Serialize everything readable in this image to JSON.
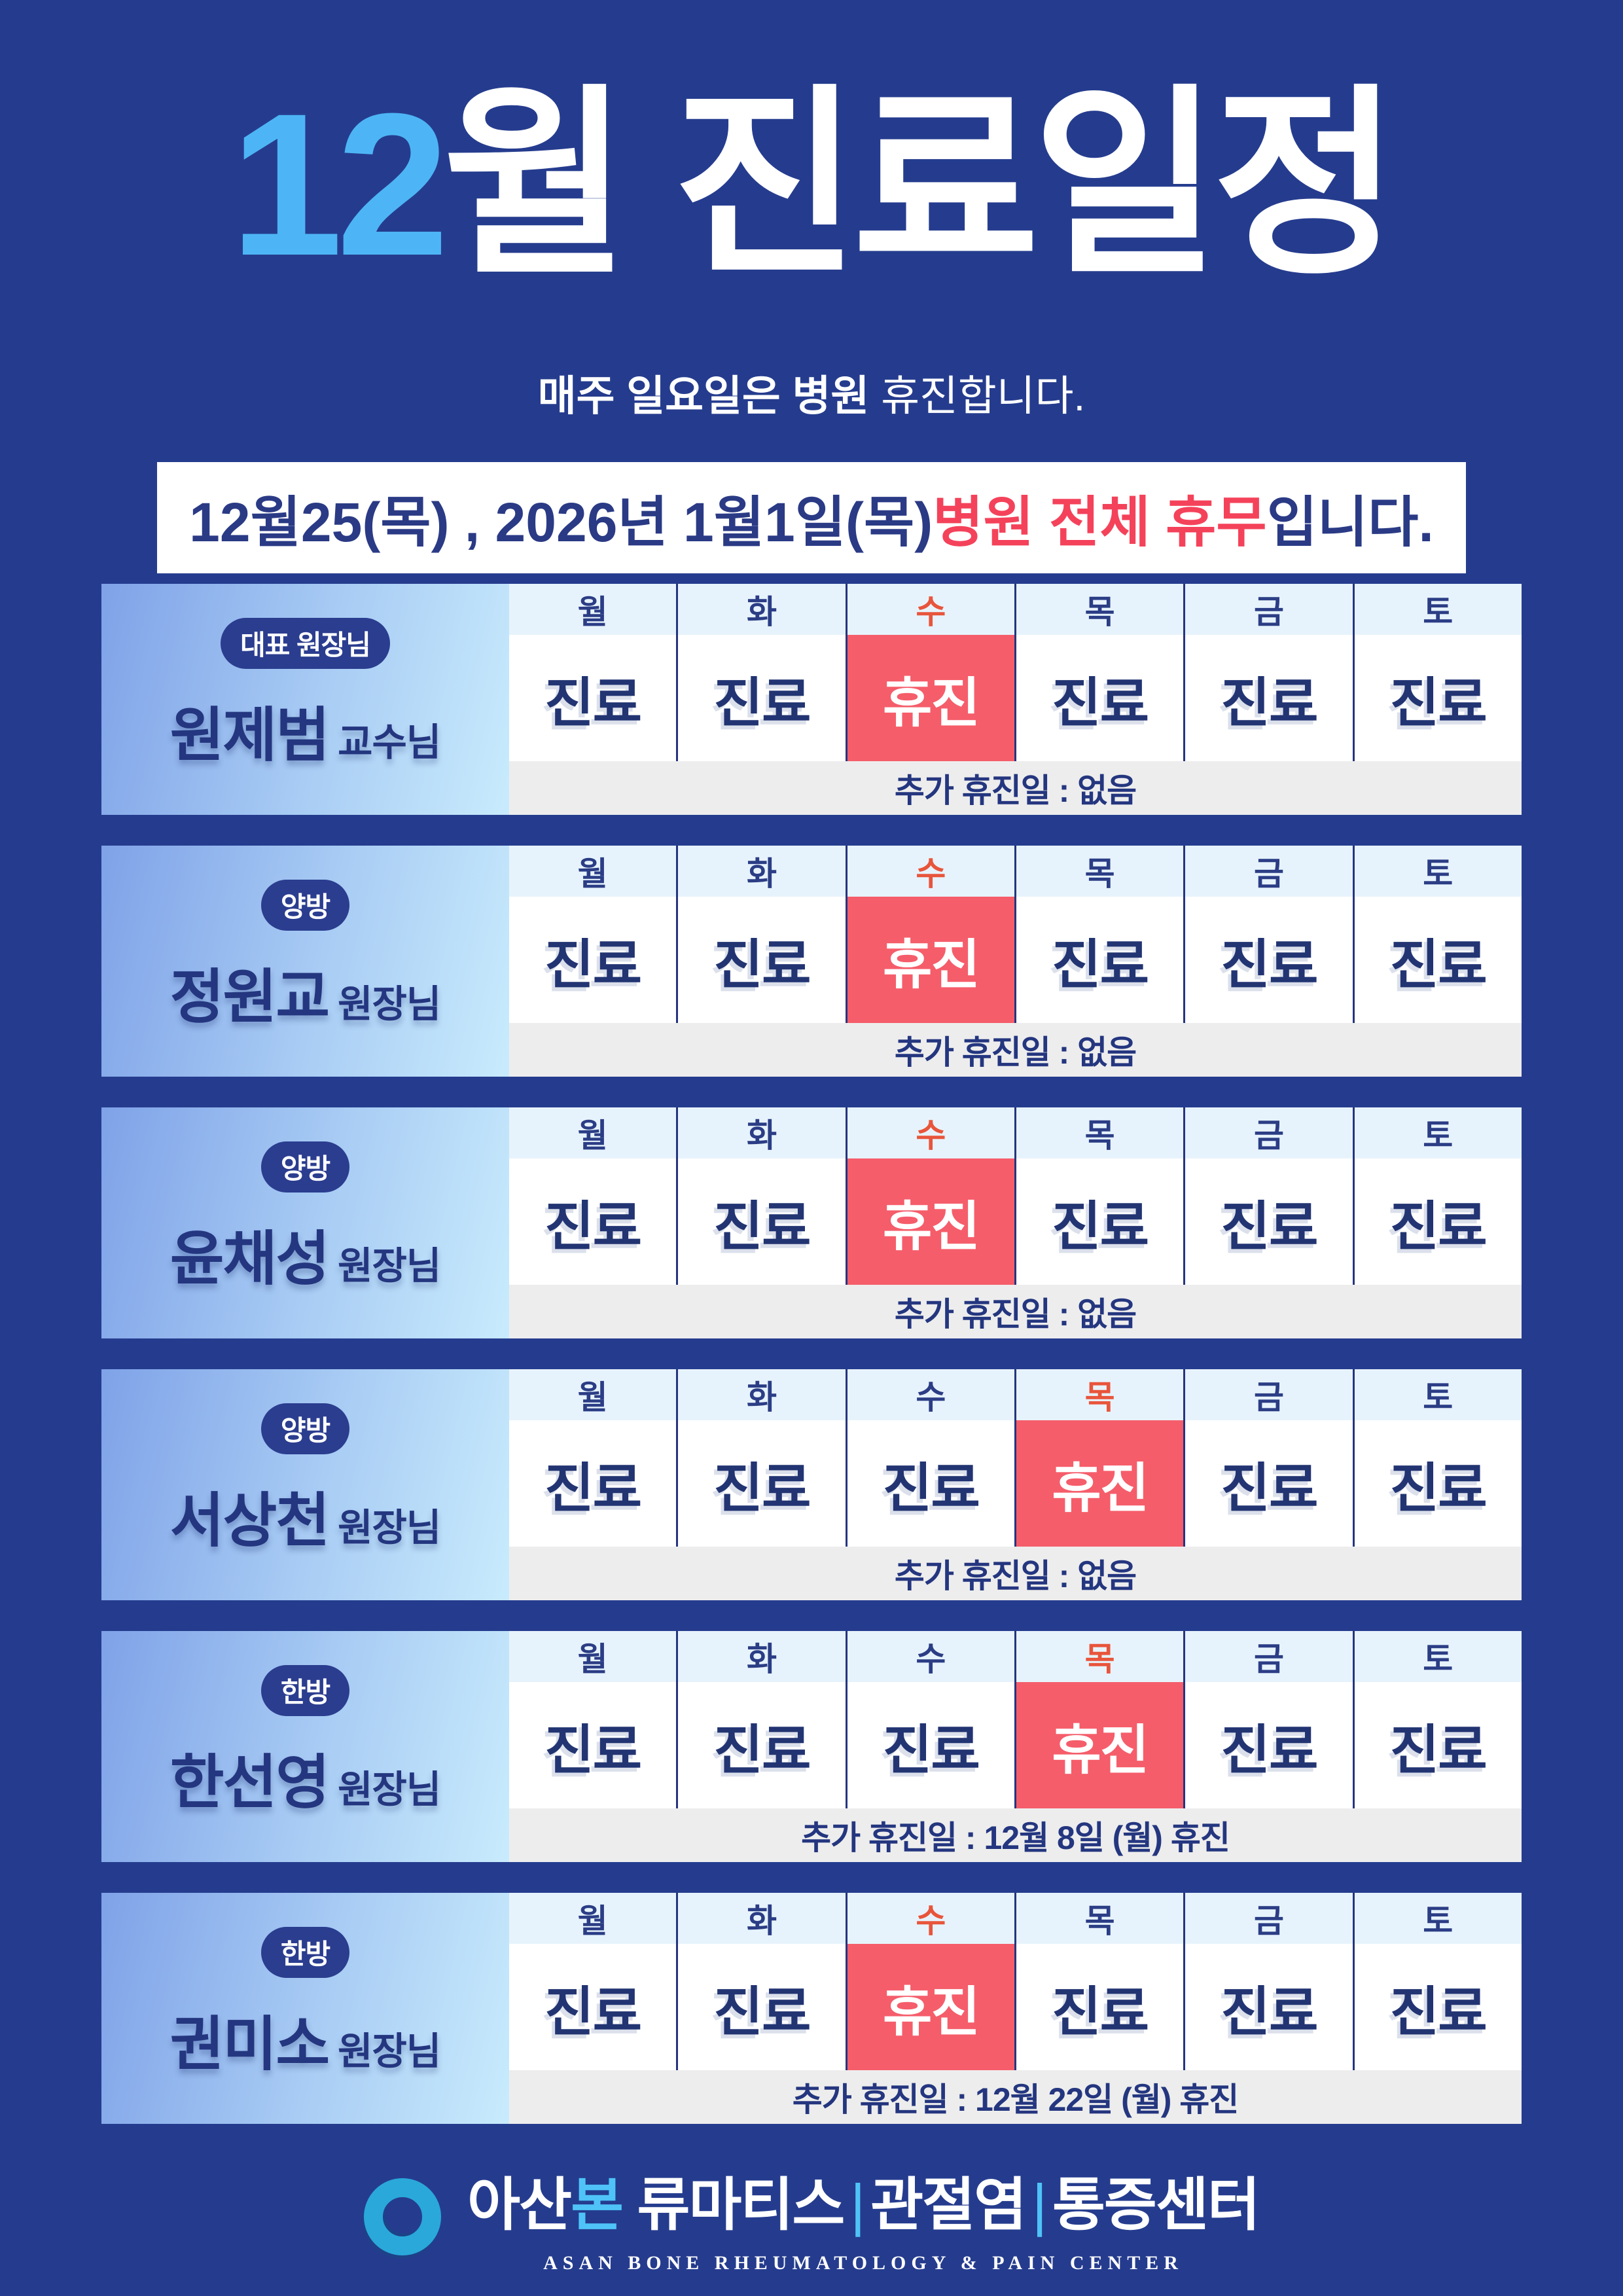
{
  "title": {
    "month": "12",
    "rest": "월 진료일정"
  },
  "subtitle": {
    "bold": "매주 일요일은 병원",
    "regular": " 휴진합니다."
  },
  "banner": {
    "pre": "12월25(목) , 2026년 1월1일(목) ",
    "highlight": "병원 전체 휴무",
    "post": "입니다."
  },
  "days": [
    "월",
    "화",
    "수",
    "목",
    "금",
    "토"
  ],
  "labels": {
    "open": "진료",
    "closed": "휴진"
  },
  "doctors": [
    {
      "badge": "대표 원장님",
      "name": "원제범",
      "suffix": "교수님",
      "schedule": [
        "진료",
        "진료",
        "휴진",
        "진료",
        "진료",
        "진료"
      ],
      "extra": "추가 휴진일 : 없음"
    },
    {
      "badge": "양방",
      "name": "정원교",
      "suffix": "원장님",
      "schedule": [
        "진료",
        "진료",
        "휴진",
        "진료",
        "진료",
        "진료"
      ],
      "extra": "추가 휴진일 : 없음"
    },
    {
      "badge": "양방",
      "name": "윤채성",
      "suffix": "원장님",
      "schedule": [
        "진료",
        "진료",
        "휴진",
        "진료",
        "진료",
        "진료"
      ],
      "extra": "추가 휴진일 : 없음"
    },
    {
      "badge": "양방",
      "name": "서상천",
      "suffix": "원장님",
      "schedule": [
        "진료",
        "진료",
        "진료",
        "휴진",
        "진료",
        "진료"
      ],
      "extra": "추가 휴진일 : 없음"
    },
    {
      "badge": "한방",
      "name": "한선영",
      "suffix": "원장님",
      "schedule": [
        "진료",
        "진료",
        "진료",
        "휴진",
        "진료",
        "진료"
      ],
      "extra": "추가 휴진일 : 12월 8일 (월) 휴진"
    },
    {
      "badge": "한방",
      "name": "권미소",
      "suffix": "원장님",
      "schedule": [
        "진료",
        "진료",
        "휴진",
        "진료",
        "진료",
        "진료"
      ],
      "extra": "추가 휴진일 : 12월 22일 (월) 휴진"
    }
  ],
  "brand": {
    "korean_white_1": "아산",
    "korean_accent": "본",
    "korean_white_2": " 류마티스",
    "divider": "|",
    "korean_part_2": "관절염",
    "korean_part_3": "통증센터",
    "english": "ASAN BONE RHEUMATOLOGY & PAIN CENTER"
  },
  "colors": {
    "background_navy": "#253c8e",
    "title_accent_blue": "#4db5f5",
    "banner_red": "#f4425a",
    "closed_cell_red": "#f55d6a",
    "closed_day_letter_red": "#e8553b",
    "navy_text": "#24367f",
    "day_header_bg": "#e7f3fc",
    "extra_row_bg": "#ededed",
    "badge_bg": "#2b3d8f",
    "panel_gradient_start": "#7fa2e8",
    "panel_gradient_end": "#c9ebfd",
    "logo_ring_cyan": "#2aa8da",
    "logo_accent_blue": "#4fc3f7"
  }
}
